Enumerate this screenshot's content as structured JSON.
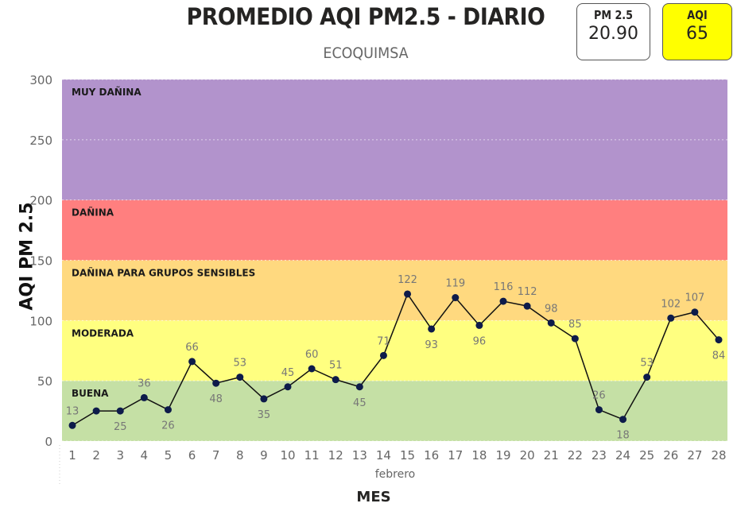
{
  "header": {
    "title": "PROMEDIO AQI PM2.5 - DIARIO",
    "subtitle": "ECOQUIMSA"
  },
  "cards": {
    "pm25": {
      "label": "PM 2.5",
      "value": "20.90"
    },
    "aqi": {
      "label": "AQI",
      "value": "65",
      "color": "#ffff00"
    }
  },
  "chart_data": {
    "type": "line",
    "title": "PROMEDIO AQI PM2.5 - DIARIO",
    "subtitle": "ECOQUIMSA",
    "xlabel": "MES",
    "x_group_label": "febrero",
    "ylabel": "AQI PM 2.5",
    "ylim": [
      0,
      300
    ],
    "yticks": [
      0,
      50,
      100,
      150,
      200,
      250,
      300
    ],
    "grid": true,
    "categories": [
      "1",
      "2",
      "3",
      "4",
      "5",
      "6",
      "7",
      "8",
      "9",
      "10",
      "11",
      "12",
      "13",
      "14",
      "15",
      "16",
      "17",
      "18",
      "19",
      "20",
      "21",
      "22",
      "23",
      "24",
      "25",
      "26",
      "27",
      "28"
    ],
    "series": [
      {
        "name": "AQI PM 2.5",
        "values": [
          13,
          25,
          25,
          36,
          26,
          66,
          48,
          53,
          35,
          45,
          60,
          51,
          45,
          71,
          122,
          93,
          119,
          96,
          116,
          112,
          98,
          85,
          26,
          18,
          53,
          102,
          107,
          84
        ],
        "labels": [
          "13",
          "",
          "25",
          "36",
          "26",
          "66",
          "48",
          "53",
          "35",
          "45",
          "60",
          "51",
          "45",
          "71",
          "122",
          "93",
          "119",
          "96",
          "116",
          "112",
          "98",
          "85",
          "26",
          "18",
          "53",
          "102",
          "107",
          "84"
        ],
        "label_pos": [
          "above",
          "none",
          "below",
          "above",
          "below",
          "above",
          "below",
          "above",
          "below",
          "above",
          "above",
          "above",
          "below",
          "above",
          "above",
          "below",
          "above",
          "below",
          "above",
          "above",
          "above",
          "above",
          "above",
          "below",
          "above",
          "above",
          "above",
          "below"
        ]
      }
    ],
    "bands": [
      {
        "name": "BUENA",
        "from": 0,
        "to": 50,
        "color": "#c5e0a5"
      },
      {
        "name": "MODERADA",
        "from": 50,
        "to": 100,
        "color": "#ffff80"
      },
      {
        "name": "DAÑINA PARA GRUPOS SENSIBLES",
        "from": 100,
        "to": 150,
        "color": "#ffd97f"
      },
      {
        "name": "DAÑINA",
        "from": 150,
        "to": 200,
        "color": "#ff7f7f"
      },
      {
        "name": "MUY DAÑINA",
        "from": 200,
        "to": 300,
        "color": "#b293cc"
      }
    ]
  }
}
